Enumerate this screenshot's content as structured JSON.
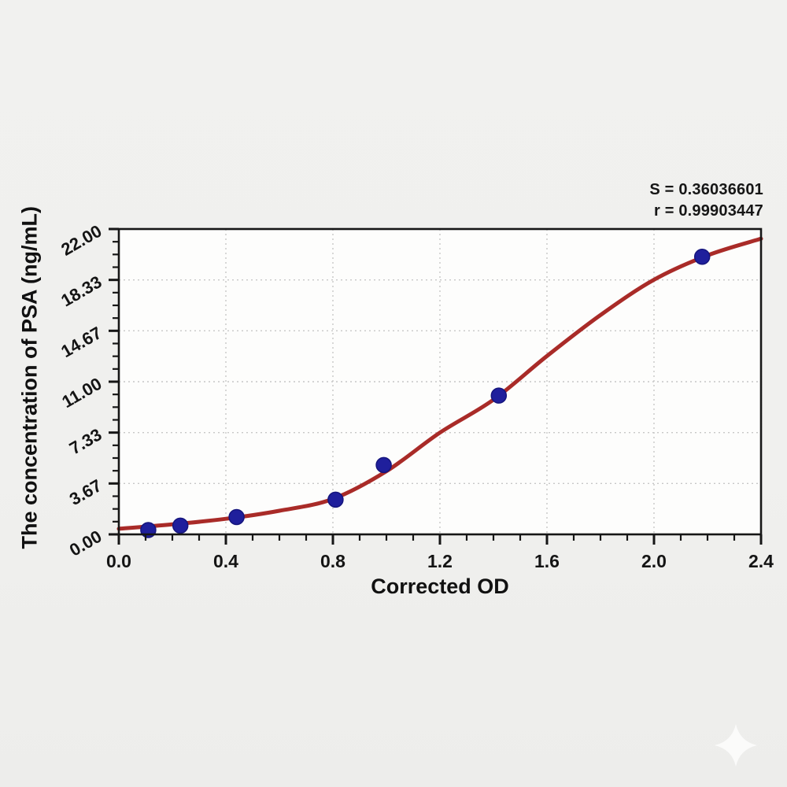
{
  "annotation": {
    "s_line": "S = 0.36036601",
    "r_line": "r = 0.99903447"
  },
  "chart_data": {
    "type": "scatter",
    "title": "",
    "xlabel": "Corrected OD",
    "ylabel": "The concentration of PSA (ng/mL)",
    "xlim": [
      0,
      2.4
    ],
    "ylim": [
      0,
      22
    ],
    "grid": "dotted gridlines at major ticks",
    "legend": "none",
    "x_ticks": {
      "values": [
        0,
        0.4,
        0.8,
        1.2,
        1.6,
        2.0,
        2.4
      ],
      "labels": [
        "0.0",
        "0.4",
        "0.8",
        "1.2",
        "1.6",
        "2.0",
        "2.4"
      ],
      "minor_per_major": 3
    },
    "y_ticks": {
      "values": [
        0,
        3.6667,
        7.3333,
        11,
        14.6667,
        18.3333,
        22
      ],
      "labels": [
        "0.00",
        "3.67",
        "7.33",
        "11.00",
        "14.67",
        "18.33",
        "22.00"
      ],
      "minor_per_major": 3
    },
    "points": [
      {
        "x": 0.11,
        "y": 0.31
      },
      {
        "x": 0.23,
        "y": 0.63
      },
      {
        "x": 0.44,
        "y": 1.25
      },
      {
        "x": 0.81,
        "y": 2.5
      },
      {
        "x": 0.99,
        "y": 5.0
      },
      {
        "x": 1.42,
        "y": 10.0
      },
      {
        "x": 2.18,
        "y": 20.0
      }
    ],
    "fit_curve_samples": [
      [
        0.0,
        0.4
      ],
      [
        0.2,
        0.72
      ],
      [
        0.4,
        1.12
      ],
      [
        0.6,
        1.7
      ],
      [
        0.8,
        2.55
      ],
      [
        1.0,
        4.55
      ],
      [
        1.2,
        7.33
      ],
      [
        1.4,
        9.7
      ],
      [
        1.6,
        12.85
      ],
      [
        1.8,
        15.8
      ],
      [
        2.0,
        18.35
      ],
      [
        2.2,
        20.1
      ],
      [
        2.4,
        21.3
      ]
    ],
    "fit_stats": {
      "S": 0.36036601,
      "r": 0.99903447
    },
    "colors": {
      "curve": "#a92b28",
      "point": "#1f1f9c",
      "point_edge": "#15157d",
      "grid": "#c7c7c7",
      "frame": "#161616",
      "text": "#141414",
      "plot_bg": "#fdfdfc",
      "page_bg": "#f0f0ee",
      "watermark": "#ffffff"
    }
  },
  "watermark": {
    "icon": "sparkle-icon"
  }
}
